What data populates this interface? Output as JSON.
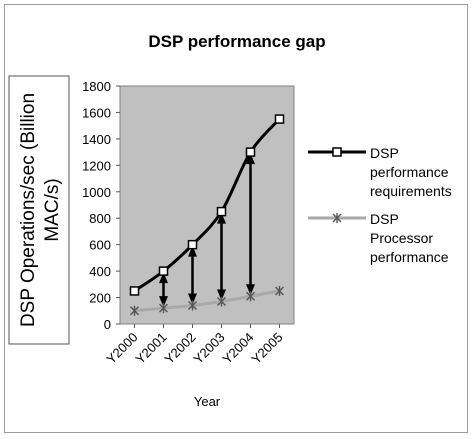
{
  "chart_data": {
    "type": "line",
    "title": "DSP performance gap",
    "xlabel": "Year",
    "ylabel_lines": [
      "DSP Operations/sec (Billion",
      "MAC/s)"
    ],
    "categories": [
      "Y2000",
      "Y2001",
      "Y2002",
      "Y2003",
      "Y2004",
      "Y2005"
    ],
    "ylim": [
      0,
      1800
    ],
    "yticks": [
      0,
      200,
      400,
      600,
      800,
      1000,
      1200,
      1400,
      1600,
      1800
    ],
    "grid": false,
    "legend_position": "right",
    "series": [
      {
        "name_lines": [
          "DSP",
          "performance",
          "requirements"
        ],
        "values": [
          250,
          400,
          600,
          850,
          1300,
          1550
        ],
        "color": "#000000",
        "marker": "square"
      },
      {
        "name_lines": [
          "DSP",
          "Processor",
          "performance"
        ],
        "values": [
          100,
          120,
          140,
          170,
          210,
          250
        ],
        "color": "#a8a8a8",
        "marker": "star"
      }
    ],
    "plot_background": "#c0c0c0"
  }
}
